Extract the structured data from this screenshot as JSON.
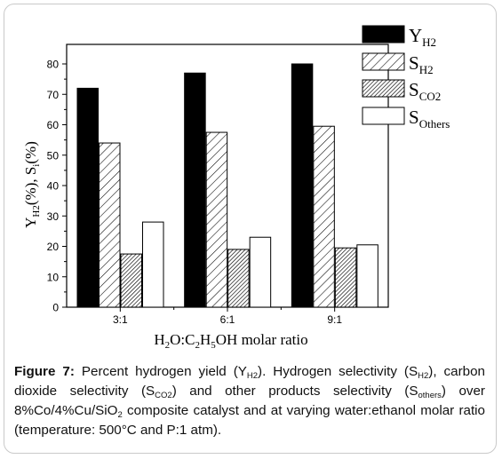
{
  "chart_data": {
    "type": "bar",
    "categories": [
      "3:1",
      "6:1",
      "9:1"
    ],
    "series": [
      {
        "name": "Y",
        "subscript": "H2",
        "fill": "solid",
        "values": [
          72,
          77,
          80
        ]
      },
      {
        "name": "S",
        "subscript": "H2",
        "fill": "hatch-light",
        "values": [
          54,
          57.5,
          59.5
        ]
      },
      {
        "name": "S",
        "subscript": "CO2",
        "fill": "hatch-dense",
        "values": [
          17.5,
          19,
          19.5
        ]
      },
      {
        "name": "S",
        "subscript": "Others",
        "fill": "white",
        "values": [
          28,
          23,
          20.5
        ]
      }
    ],
    "ylim": [
      0,
      80
    ],
    "yticks": [
      0,
      10,
      20,
      30,
      40,
      50,
      60,
      70,
      80
    ],
    "ylabel": {
      "parts": [
        [
          "Y",
          ""
        ],
        [
          "H2",
          "sub"
        ],
        [
          "(%), S",
          ""
        ],
        [
          "i",
          "sub"
        ],
        [
          "(%)",
          ""
        ]
      ]
    },
    "xlabel": {
      "parts": [
        [
          "H",
          ""
        ],
        [
          "2",
          "sub"
        ],
        [
          "O:C",
          ""
        ],
        [
          "2",
          "sub"
        ],
        [
          "H",
          ""
        ],
        [
          "5",
          "sub"
        ],
        [
          "OH molar ratio",
          ""
        ]
      ]
    },
    "legend_position": "top-right",
    "grid": false,
    "colors": {
      "bar_fill": "#000000",
      "stroke": "#000000",
      "background": "#ffffff"
    }
  },
  "caption": {
    "label": "Figure 7:",
    "t1": " Percent hydrogen yield (Y",
    "s1": "H2",
    "t2": "). Hydrogen selectivity (S",
    "s2": "H2",
    "t3": "), carbon dioxide selectivity (S",
    "s3": "CO2",
    "t4": ") and other products selectivity (S",
    "s4": "others",
    "t5": ") over 8%Co/4%Cu/SiO",
    "s5": "2",
    "t6": " composite catalyst and at varying water:ethanol molar ratio (temperature: 500°C and P:1 atm)."
  }
}
